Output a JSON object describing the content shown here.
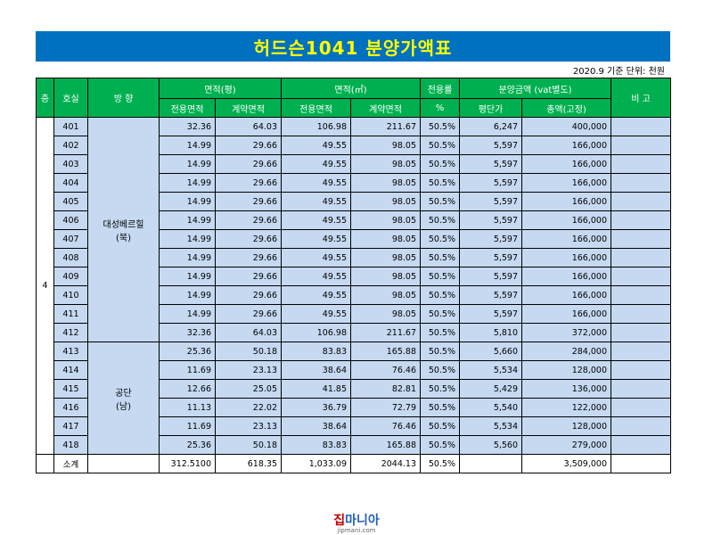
{
  "title": "허드슨1041 분양가액표",
  "meta": "2020.9 기준 단위: 천원",
  "headers": {
    "floor": "층",
    "room": "호실",
    "direction": "방 향",
    "area_pyeong": "면적(평)",
    "area_sqm": "면적(㎡)",
    "ratio": "전용률",
    "price": "분양금액 (vat별도)",
    "remarks": "비 고",
    "exclusive_area": "전용면적",
    "contract_area": "계약면적",
    "percent": "%",
    "unit_price": "평단가",
    "total_price": "총액(고정)"
  },
  "floor_value": "4",
  "direction_groups": [
    {
      "label": "대성베르힐\n(북)"
    },
    {
      "label": "공단\n(남)"
    }
  ],
  "rows": [
    {
      "room": "401",
      "p_ex": "32.36",
      "p_ct": "64.03",
      "m_ex": "106.98",
      "m_ct": "211.67",
      "ratio": "50.5%",
      "unit": "6,247",
      "total": "400,000",
      "note": ""
    },
    {
      "room": "402",
      "p_ex": "14.99",
      "p_ct": "29.66",
      "m_ex": "49.55",
      "m_ct": "98.05",
      "ratio": "50.5%",
      "unit": "5,597",
      "total": "166,000",
      "note": ""
    },
    {
      "room": "403",
      "p_ex": "14.99",
      "p_ct": "29.66",
      "m_ex": "49.55",
      "m_ct": "98.05",
      "ratio": "50.5%",
      "unit": "5,597",
      "total": "166,000",
      "note": ""
    },
    {
      "room": "404",
      "p_ex": "14.99",
      "p_ct": "29.66",
      "m_ex": "49.55",
      "m_ct": "98.05",
      "ratio": "50.5%",
      "unit": "5,597",
      "total": "166,000",
      "note": ""
    },
    {
      "room": "405",
      "p_ex": "14.99",
      "p_ct": "29.66",
      "m_ex": "49.55",
      "m_ct": "98.05",
      "ratio": "50.5%",
      "unit": "5,597",
      "total": "166,000",
      "note": ""
    },
    {
      "room": "406",
      "p_ex": "14.99",
      "p_ct": "29.66",
      "m_ex": "49.55",
      "m_ct": "98.05",
      "ratio": "50.5%",
      "unit": "5,597",
      "total": "166,000",
      "note": ""
    },
    {
      "room": "407",
      "p_ex": "14.99",
      "p_ct": "29.66",
      "m_ex": "49.55",
      "m_ct": "98.05",
      "ratio": "50.5%",
      "unit": "5,597",
      "total": "166,000",
      "note": ""
    },
    {
      "room": "408",
      "p_ex": "14.99",
      "p_ct": "29.66",
      "m_ex": "49.55",
      "m_ct": "98.05",
      "ratio": "50.5%",
      "unit": "5,597",
      "total": "166,000",
      "note": ""
    },
    {
      "room": "409",
      "p_ex": "14.99",
      "p_ct": "29.66",
      "m_ex": "49.55",
      "m_ct": "98.05",
      "ratio": "50.5%",
      "unit": "5,597",
      "total": "166,000",
      "note": ""
    },
    {
      "room": "410",
      "p_ex": "14.99",
      "p_ct": "29.66",
      "m_ex": "49.55",
      "m_ct": "98.05",
      "ratio": "50.5%",
      "unit": "5,597",
      "total": "166,000",
      "note": ""
    },
    {
      "room": "411",
      "p_ex": "14.99",
      "p_ct": "29.66",
      "m_ex": "49.55",
      "m_ct": "98.05",
      "ratio": "50.5%",
      "unit": "5,597",
      "total": "166,000",
      "note": ""
    },
    {
      "room": "412",
      "p_ex": "32.36",
      "p_ct": "64.03",
      "m_ex": "106.98",
      "m_ct": "211.67",
      "ratio": "50.5%",
      "unit": "5,810",
      "total": "372,000",
      "note": ""
    },
    {
      "room": "413",
      "p_ex": "25.36",
      "p_ct": "50.18",
      "m_ex": "83.83",
      "m_ct": "165.88",
      "ratio": "50.5%",
      "unit": "5,660",
      "total": "284,000",
      "note": ""
    },
    {
      "room": "414",
      "p_ex": "11.69",
      "p_ct": "23.13",
      "m_ex": "38.64",
      "m_ct": "76.46",
      "ratio": "50.5%",
      "unit": "5,534",
      "total": "128,000",
      "note": ""
    },
    {
      "room": "415",
      "p_ex": "12.66",
      "p_ct": "25.05",
      "m_ex": "41.85",
      "m_ct": "82.81",
      "ratio": "50.5%",
      "unit": "5,429",
      "total": "136,000",
      "note": ""
    },
    {
      "room": "416",
      "p_ex": "11.13",
      "p_ct": "22.02",
      "m_ex": "36.79",
      "m_ct": "72.79",
      "ratio": "50.5%",
      "unit": "5,540",
      "total": "122,000",
      "note": ""
    },
    {
      "room": "417",
      "p_ex": "11.69",
      "p_ct": "23.13",
      "m_ex": "38.64",
      "m_ct": "76.46",
      "ratio": "50.5%",
      "unit": "5,534",
      "total": "128,000",
      "note": ""
    },
    {
      "room": "418",
      "p_ex": "25.36",
      "p_ct": "50.18",
      "m_ex": "83.83",
      "m_ct": "165.88",
      "ratio": "50.5%",
      "unit": "5,560",
      "total": "279,000",
      "note": ""
    }
  ],
  "subtotal": {
    "label": "소계",
    "p_ex": "312.5100",
    "p_ct": "618.35",
    "m_ex": "1,033.09",
    "m_ct": "2044.13",
    "ratio": "50.5%",
    "unit": "",
    "total": "3,509,000"
  },
  "watermark": {
    "logo_a": "집",
    "logo_b": "마니아",
    "url": "jipmani.com"
  },
  "colors": {
    "title_bg": "#0070c0",
    "title_text": "#ffff00",
    "header_bg": "#00b050",
    "cell_bg": "#c6d9f1"
  }
}
